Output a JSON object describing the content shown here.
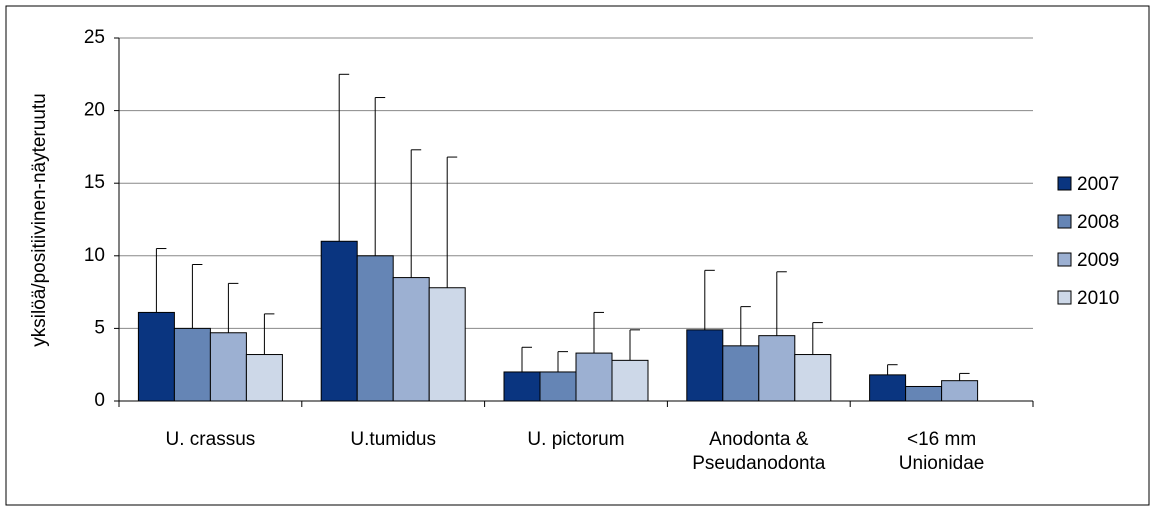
{
  "chart_data": {
    "type": "bar",
    "y_label": "yksilöä/positiivinen-näyteruutu",
    "categories": [
      [
        "U. crassus"
      ],
      [
        "U.tumidus"
      ],
      [
        "U. pictorum"
      ],
      [
        "Anodonta &",
        "Pseudanodonta"
      ],
      [
        "<16 mm",
        "Unionidae"
      ]
    ],
    "series": [
      {
        "name": "2007",
        "color": "#0a3580",
        "values": [
          6.1,
          11.0,
          2.0,
          4.9,
          1.8
        ],
        "errors": [
          4.4,
          11.5,
          1.7,
          4.1,
          0.7
        ]
      },
      {
        "name": "2008",
        "color": "#6585b5",
        "values": [
          5.0,
          10.0,
          2.0,
          3.8,
          1.0
        ],
        "errors": [
          4.4,
          10.9,
          1.4,
          2.7,
          null
        ]
      },
      {
        "name": "2009",
        "color": "#9cb0d2",
        "values": [
          4.7,
          8.5,
          3.3,
          4.5,
          1.4
        ],
        "errors": [
          3.4,
          8.8,
          2.8,
          4.4,
          0.5
        ]
      },
      {
        "name": "2010",
        "color": "#cdd8e8",
        "values": [
          3.2,
          7.8,
          2.8,
          3.2,
          null
        ],
        "errors": [
          2.8,
          9.0,
          2.1,
          2.2,
          null
        ]
      }
    ],
    "ylim": [
      0,
      25
    ],
    "yticks": [
      0,
      5,
      10,
      15,
      20,
      25
    ],
    "grid": true,
    "legend": "right"
  }
}
